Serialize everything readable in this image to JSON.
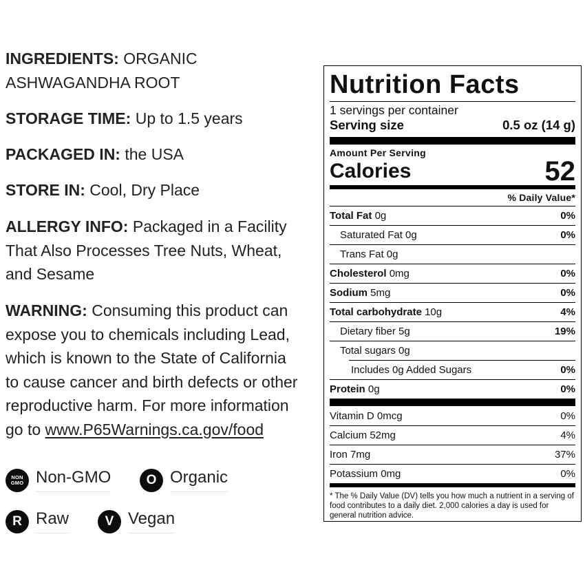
{
  "info": {
    "ingredients": {
      "label": "INGREDIENTS:",
      "line1": "ORGANIC",
      "line2": "ASHWAGANDHA ROOT"
    },
    "storage_time": {
      "label": "STORAGE TIME:",
      "value": "Up to 1.5 years"
    },
    "packaged_in": {
      "label": "PACKAGED IN:",
      "value": "the USA"
    },
    "store_in": {
      "label": "STORE IN:",
      "value": "Cool, Dry Place"
    },
    "allergy": {
      "label": "ALLERGY INFO:",
      "line1": "Packaged in a Facility",
      "line2": "That Also Processes Tree Nuts, Wheat,",
      "line3": "and Sesame"
    },
    "warning": {
      "label": "WARNING:",
      "line1": "Consuming this product can",
      "line2": "expose you to chemicals including Lead,",
      "line3": "which is known to the State of California",
      "line4": "to cause cancer and birth defects or other",
      "line5": "reproductive harm. For more information",
      "line6_prefix": "go to",
      "link": "www.P65Warnings.ca.gov/food"
    }
  },
  "badges": {
    "non_gmo": {
      "icon": "NON GMO",
      "icon_top": "NON",
      "icon_bottom": "GMO",
      "label": "Non-GMO"
    },
    "organic": {
      "icon": "O",
      "label": "Organic"
    },
    "raw": {
      "icon": "R",
      "label": "Raw"
    },
    "vegan": {
      "icon": "V",
      "label": "Vegan"
    }
  },
  "nutrition": {
    "title": "Nutrition Facts",
    "servings": "1 servings per container",
    "serving_size_label": "Serving size",
    "serving_size_value": "0.5 oz (14 g)",
    "amount_per_serving": "Amount Per Serving",
    "calories_label": "Calories",
    "calories_value": "52",
    "dv_header": "% Daily Value*",
    "rows": {
      "total_fat": {
        "label": "Total Fat",
        "amount": "0g",
        "pct": "0%"
      },
      "saturated_fat": {
        "label": "Saturated Fat 0g",
        "pct": "0%"
      },
      "trans_fat": {
        "label": "Trans Fat 0g",
        "pct": ""
      },
      "cholesterol": {
        "label": "Cholesterol",
        "amount": "0mg",
        "pct": "0%"
      },
      "sodium": {
        "label": "Sodium",
        "amount": "5mg",
        "pct": "0%"
      },
      "total_carb": {
        "label": "Total carbohydrate",
        "amount": "10g",
        "pct": "4%"
      },
      "dietary_fiber": {
        "label": "Dietary fiber 5g",
        "pct": "19%"
      },
      "total_sugars": {
        "label": "Total sugars 0g",
        "pct": ""
      },
      "added_sugars": {
        "label": "Includes 0g Added Sugars",
        "pct": "0%"
      },
      "protein": {
        "label": "Protein",
        "amount": "0g",
        "pct": "0%"
      }
    },
    "vitamins": {
      "vitamin_d": {
        "label": "Vitamin D 0mcg",
        "pct": "0%"
      },
      "calcium": {
        "label": "Calcium 52mg",
        "pct": "4%"
      },
      "iron": {
        "label": "Iron 7mg",
        "pct": "37%"
      },
      "potassium": {
        "label": "Potassium 0mg",
        "pct": "0%"
      }
    },
    "footnote": "* The % Daily Value (DV) tells you how much a nutrient in a serving of food contributes to a daily diet. 2,000 calories a day is used for general nutrition advice."
  }
}
